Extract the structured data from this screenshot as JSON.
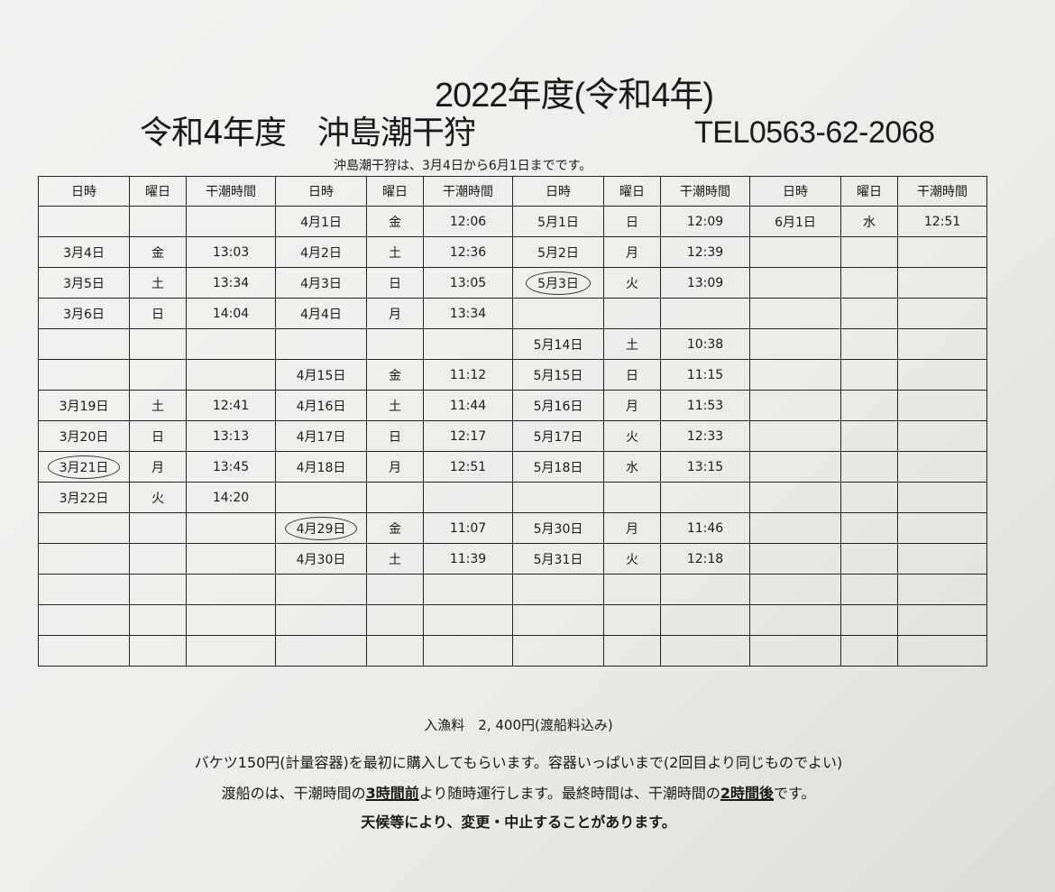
{
  "header": {
    "year_title": "2022年度(令和4年)",
    "main_title": "令和4年度　沖島潮干狩",
    "tel": "TEL0563-62-2068",
    "period": "沖島潮干狩は、3月4日から6月1日までです。"
  },
  "table": {
    "columns": [
      "日時",
      "曜日",
      "干潮時間",
      "日時",
      "曜日",
      "干潮時間",
      "日時",
      "曜日",
      "干潮時間",
      "日時",
      "曜日",
      "干潮時間"
    ],
    "circled_dates": [
      "3月21日",
      "4月29日",
      "5月3日"
    ],
    "rows": [
      [
        "",
        "",
        "",
        "4月1日",
        "金",
        "12:06",
        "5月1日",
        "日",
        "12:09",
        "6月1日",
        "水",
        "12:51"
      ],
      [
        "3月4日",
        "金",
        "13:03",
        "4月2日",
        "土",
        "12:36",
        "5月2日",
        "月",
        "12:39",
        "",
        "",
        ""
      ],
      [
        "3月5日",
        "土",
        "13:34",
        "4月3日",
        "日",
        "13:05",
        "5月3日",
        "火",
        "13:09",
        "",
        "",
        ""
      ],
      [
        "3月6日",
        "日",
        "14:04",
        "4月4日",
        "月",
        "13:34",
        "",
        "",
        "",
        "",
        "",
        ""
      ],
      [
        "",
        "",
        "",
        "",
        "",
        "",
        "5月14日",
        "土",
        "10:38",
        "",
        "",
        ""
      ],
      [
        "",
        "",
        "",
        "4月15日",
        "金",
        "11:12",
        "5月15日",
        "日",
        "11:15",
        "",
        "",
        ""
      ],
      [
        "3月19日",
        "土",
        "12:41",
        "4月16日",
        "土",
        "11:44",
        "5月16日",
        "月",
        "11:53",
        "",
        "",
        ""
      ],
      [
        "3月20日",
        "日",
        "13:13",
        "4月17日",
        "日",
        "12:17",
        "5月17日",
        "火",
        "12:33",
        "",
        "",
        ""
      ],
      [
        "3月21日",
        "月",
        "13:45",
        "4月18日",
        "月",
        "12:51",
        "5月18日",
        "水",
        "13:15",
        "",
        "",
        ""
      ],
      [
        "3月22日",
        "火",
        "14:20",
        "",
        "",
        "",
        "",
        "",
        "",
        "",
        "",
        ""
      ],
      [
        "",
        "",
        "",
        "4月29日",
        "金",
        "11:07",
        "5月30日",
        "月",
        "11:46",
        "",
        "",
        ""
      ],
      [
        "",
        "",
        "",
        "4月30日",
        "土",
        "11:39",
        "5月31日",
        "火",
        "12:18",
        "",
        "",
        ""
      ],
      [
        "",
        "",
        "",
        "",
        "",
        "",
        "",
        "",
        "",
        "",
        "",
        ""
      ],
      [
        "",
        "",
        "",
        "",
        "",
        "",
        "",
        "",
        "",
        "",
        "",
        ""
      ],
      [
        "",
        "",
        "",
        "",
        "",
        "",
        "",
        "",
        "",
        "",
        "",
        ""
      ]
    ]
  },
  "footer": {
    "fee": "入漁料　2, 400円(渡船料込み)",
    "bucket": "バケツ150円(計量容器)を最初に購入してもらいます。容器いっぱいまで(2回目より同じものでよい)",
    "ferry_a": "渡船のは、干潮時間の",
    "ferry_b": "3時間前",
    "ferry_c": "より随時運行します。最終時間は、干潮時間の",
    "ferry_d": "2時間後",
    "ferry_e": "です。",
    "notice": "天候等により、変更・中止することがあります。"
  }
}
